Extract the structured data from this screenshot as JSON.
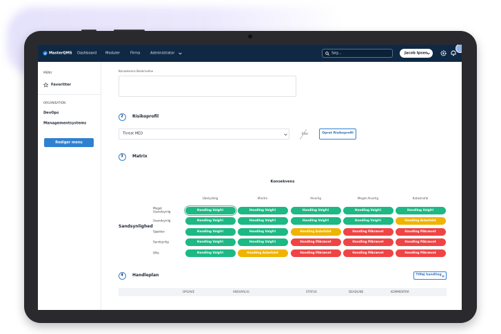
{
  "nav": {
    "brand": "MasterQMS",
    "items": [
      "Dashboard",
      "Moduler",
      "Firma",
      "Administrator"
    ],
    "search_placeholder": "Søg...",
    "user": "Jacob Ipsen"
  },
  "sidebar": {
    "menu_heading": "MENU",
    "favorites": "Favoritter",
    "org_heading": "ORGANISATION",
    "org_items": [
      "DevOps",
      "Managementsystems"
    ],
    "edit_button": "Rediger menu"
  },
  "form": {
    "description_label": "Konsekvens Beskrivelse"
  },
  "sections": [
    {
      "number": 2,
      "title": "Risikoprofil"
    },
    {
      "number": 3,
      "title": "Matrix"
    },
    {
      "number": 4,
      "title": "Handleplan"
    }
  ],
  "risk_profile": {
    "selected": "Threat MED",
    "or": "Eller",
    "create_button": "Opret Risikoprofil"
  },
  "matrix": {
    "column_axis_title": "Konsekvens",
    "row_axis_title": "Sandsynlighed",
    "columns": [
      "Ubetydelig",
      "Mindre",
      "Alvorlig",
      "Meget Alvorlig",
      "Katastrofal"
    ],
    "rows": [
      {
        "label": "Meget Usandsynlig",
        "cells": [
          {
            "text": "Handling Valgfri",
            "color": "#1db884",
            "selected": true
          },
          {
            "text": "Handling Valgfri",
            "color": "#1db884"
          },
          {
            "text": "Handling Valgfri",
            "color": "#1db884"
          },
          {
            "text": "Handling Valgfri",
            "color": "#1db884"
          },
          {
            "text": "Handling Valgfri",
            "color": "#1db884"
          }
        ]
      },
      {
        "label": "Usandsynlig",
        "cells": [
          {
            "text": "Handling Valgfri",
            "color": "#1db884"
          },
          {
            "text": "Handling Valgfri",
            "color": "#1db884"
          },
          {
            "text": "Handling Valgfri",
            "color": "#1db884"
          },
          {
            "text": "Handling Valgfri",
            "color": "#1db884"
          },
          {
            "text": "Handling Anbefalet",
            "color": "#f0b400"
          }
        ]
      },
      {
        "label": "Sjælden",
        "cells": [
          {
            "text": "Handling Valgfri",
            "color": "#1db884"
          },
          {
            "text": "Handling Valgfri",
            "color": "#1db884"
          },
          {
            "text": "Handling Anbefalet",
            "color": "#f0b400"
          },
          {
            "text": "Handling Påkrævet",
            "color": "#ef4444"
          },
          {
            "text": "Handling Påkrævet",
            "color": "#ef4444"
          }
        ]
      },
      {
        "label": "Sandsynlig",
        "cells": [
          {
            "text": "Handling Valgfri",
            "color": "#1db884"
          },
          {
            "text": "Handling Valgfri",
            "color": "#1db884"
          },
          {
            "text": "Handling Påkrævet",
            "color": "#ef4444"
          },
          {
            "text": "Handling Påkrævet",
            "color": "#ef4444"
          },
          {
            "text": "Handling Påkrævet",
            "color": "#ef4444"
          }
        ]
      },
      {
        "label": "Ofte",
        "cells": [
          {
            "text": "Handling Valgfri",
            "color": "#1db884"
          },
          {
            "text": "Handling Anbefalet",
            "color": "#f0b400"
          },
          {
            "text": "Handling Påkrævet",
            "color": "#ef4444"
          },
          {
            "text": "Handling Påkrævet",
            "color": "#ef4444"
          },
          {
            "text": "Handling Påkrævet",
            "color": "#ef4444"
          }
        ]
      }
    ]
  },
  "action_plan": {
    "add_button": "Tilføj handling",
    "columns": [
      "OPGAVE",
      "ANSVARLIG",
      "STATUS",
      "DEADLINE",
      "KOMMENTAR"
    ]
  }
}
